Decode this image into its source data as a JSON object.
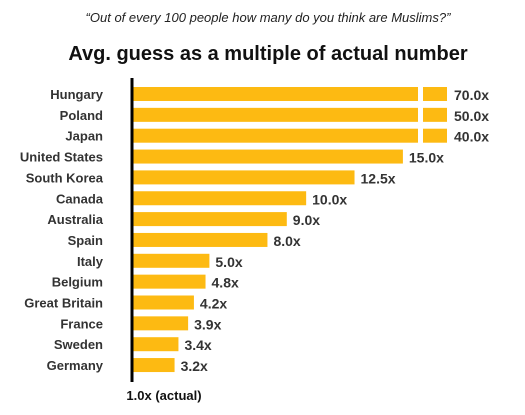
{
  "chart_data": {
    "type": "bar",
    "orientation": "horizontal",
    "subtitle": "“Out of every 100 people how many do you think are Muslims?”",
    "title": "Avg. guess as a multiple of actual number",
    "categories": [
      "Hungary",
      "Poland",
      "Japan",
      "United States",
      "South Korea",
      "Canada",
      "Australia",
      "Spain",
      "Italy",
      "Belgium",
      "Great Britain",
      "France",
      "Sweden",
      "Germany"
    ],
    "values": [
      70.0,
      50.0,
      40.0,
      15.0,
      12.5,
      10.0,
      9.0,
      8.0,
      5.0,
      4.8,
      4.2,
      3.9,
      3.4,
      3.2
    ],
    "value_labels": [
      "70.0x",
      "50.0x",
      "40.0x",
      "15.0x",
      "12.5x",
      "10.0x",
      "9.0x",
      "8.0x",
      "5.0x",
      "4.8x",
      "4.2x",
      "3.9x",
      "3.4x",
      "3.2x"
    ],
    "truncated_categories": [
      "Hungary",
      "Poland",
      "Japan"
    ],
    "reference_line": {
      "value": 1.0,
      "label": "1.0x (actual)"
    },
    "colors": {
      "bar": "#FDBA12",
      "reference_line": "#000000"
    },
    "grid": false,
    "legend": "none"
  }
}
